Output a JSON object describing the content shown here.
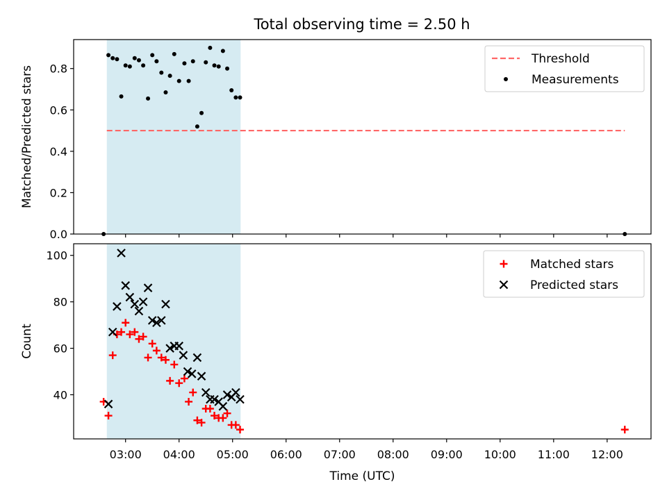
{
  "title": "Total observing time = 2.50 h",
  "colors": {
    "shade": "#add8e6",
    "threshold": "#ff6666",
    "measurement": "#000000",
    "matched": "#ff0000",
    "predicted": "#000000"
  },
  "chart_data": [
    {
      "type": "scatter",
      "ylabel": "Matched/Predicted stars",
      "ylim": [
        0,
        0.94
      ],
      "yticks": [
        0.0,
        0.2,
        0.4,
        0.6,
        0.8
      ],
      "ytick_labels": [
        "0.0",
        "0.2",
        "0.4",
        "0.6",
        "0.8"
      ],
      "grid": false,
      "legend": {
        "placement": "upper right",
        "entries": [
          {
            "label": "Threshold",
            "marker": "dashed-line"
          },
          {
            "label": "Measurements",
            "marker": "dot"
          }
        ]
      },
      "shaded_span_hours": [
        2.65,
        5.15
      ],
      "threshold": {
        "value": 0.5,
        "x_range_hours": [
          2.65,
          12.33
        ]
      },
      "series": [
        {
          "name": "Measurements",
          "x_hours": [
            2.59,
            2.68,
            2.76,
            2.84,
            2.92,
            3.0,
            3.08,
            3.17,
            3.25,
            3.33,
            3.42,
            3.5,
            3.58,
            3.67,
            3.75,
            3.83,
            3.91,
            4.0,
            4.1,
            4.18,
            4.26,
            4.34,
            4.42,
            4.5,
            4.58,
            4.66,
            4.74,
            4.82,
            4.9,
            4.98,
            5.06,
            5.14,
            12.33
          ],
          "values": [
            0.0,
            0.865,
            0.85,
            0.845,
            0.665,
            0.815,
            0.81,
            0.85,
            0.84,
            0.815,
            0.655,
            0.865,
            0.835,
            0.78,
            0.685,
            0.765,
            0.87,
            0.74,
            0.825,
            0.74,
            0.835,
            0.52,
            0.585,
            0.83,
            0.9,
            0.815,
            0.81,
            0.885,
            0.8,
            0.695,
            0.66,
            0.66,
            0.0
          ]
        }
      ]
    },
    {
      "type": "scatter",
      "xlabel": "Time (UTC)",
      "ylabel": "Count",
      "ylim": [
        21,
        105
      ],
      "yticks": [
        40,
        60,
        80,
        100
      ],
      "ytick_labels": [
        "40",
        "60",
        "80",
        "100"
      ],
      "xlim_hours": [
        2.03,
        12.82
      ],
      "xticks_hours": [
        3,
        4,
        5,
        6,
        7,
        8,
        9,
        10,
        11,
        12
      ],
      "xtick_labels": [
        "03:00",
        "04:00",
        "05:00",
        "06:00",
        "07:00",
        "08:00",
        "09:00",
        "10:00",
        "11:00",
        "12:00"
      ],
      "grid": false,
      "legend": {
        "placement": "upper right",
        "entries": [
          {
            "label": "Matched stars",
            "marker": "plus"
          },
          {
            "label": "Predicted stars",
            "marker": "x"
          }
        ]
      },
      "shaded_span_hours": [
        2.65,
        5.15
      ],
      "series": [
        {
          "name": "Matched stars",
          "x_hours": [
            2.59,
            2.68,
            2.76,
            2.84,
            2.92,
            3.0,
            3.08,
            3.17,
            3.25,
            3.33,
            3.42,
            3.5,
            3.58,
            3.67,
            3.75,
            3.83,
            3.91,
            4.0,
            4.1,
            4.18,
            4.26,
            4.34,
            4.42,
            4.5,
            4.58,
            4.66,
            4.74,
            4.82,
            4.9,
            4.98,
            5.06,
            5.14,
            12.33
          ],
          "values": [
            37,
            31,
            57,
            66,
            67,
            71,
            66,
            67,
            64,
            65,
            56,
            62,
            59,
            56,
            55,
            46,
            53,
            45,
            47,
            37,
            41,
            29,
            28,
            34,
            34,
            31,
            30,
            30,
            32,
            27,
            27,
            25,
            25
          ]
        },
        {
          "name": "Predicted stars",
          "x_hours": [
            2.68,
            2.76,
            2.84,
            2.92,
            3.0,
            3.08,
            3.17,
            3.25,
            3.33,
            3.42,
            3.5,
            3.58,
            3.67,
            3.75,
            3.83,
            3.91,
            4.0,
            4.08,
            4.16,
            4.24,
            4.34,
            4.42,
            4.5,
            4.58,
            4.66,
            4.74,
            4.82,
            4.9,
            4.98,
            5.06,
            5.14
          ],
          "values": [
            36,
            67,
            78,
            101,
            87,
            82,
            79,
            76,
            80,
            86,
            72,
            71,
            72,
            79,
            60,
            61,
            61,
            57,
            50,
            49,
            56,
            48,
            41,
            38,
            38,
            37,
            35,
            40,
            39,
            41,
            38
          ]
        }
      ]
    }
  ]
}
